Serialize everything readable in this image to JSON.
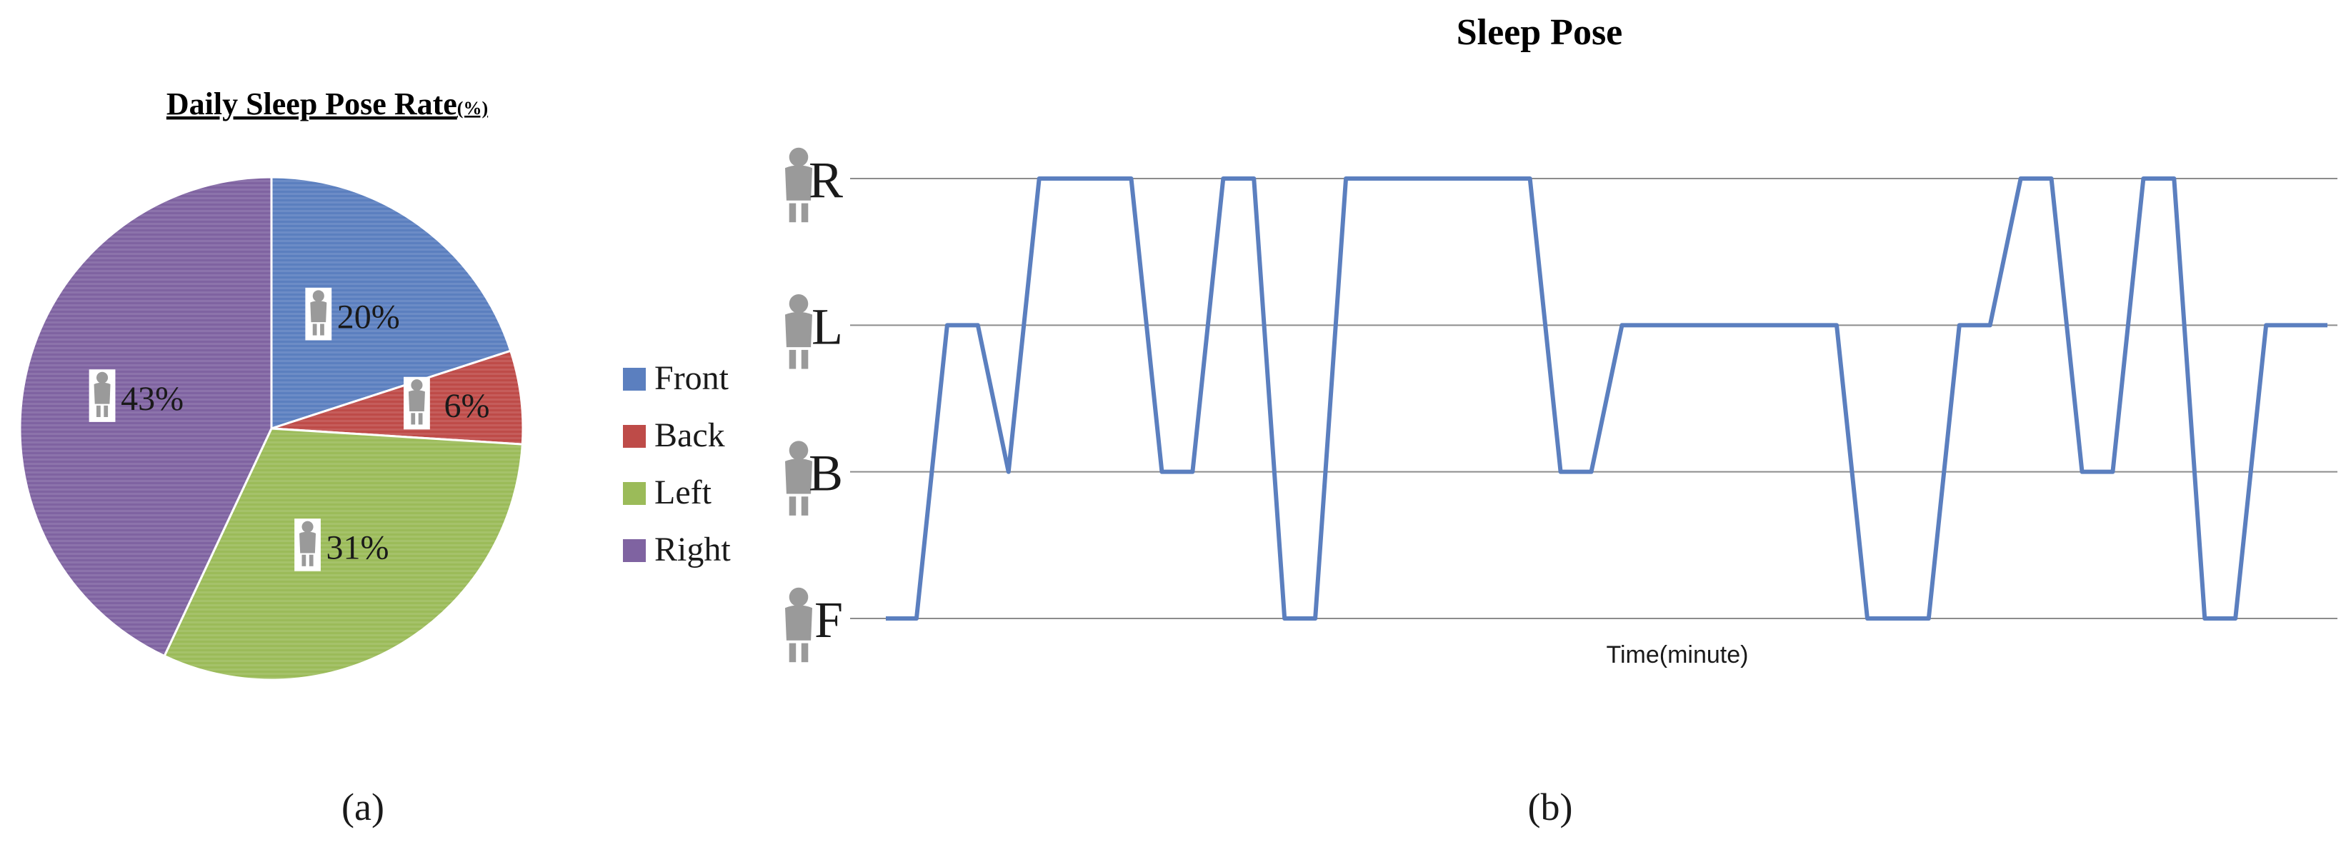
{
  "chart_data": [
    {
      "type": "pie",
      "title": "Daily Sleep Pose Rate",
      "title_unit": "(%)",
      "slices": [
        {
          "name": "Front",
          "value": 20,
          "label": "20%",
          "color": "#5b7fbf"
        },
        {
          "name": "Back",
          "value": 6,
          "label": "6%",
          "color": "#be4b48"
        },
        {
          "name": "Left",
          "value": 31,
          "label": "31%",
          "color": "#9bbb59"
        },
        {
          "name": "Right",
          "value": 43,
          "label": "43%",
          "color": "#7f63a1"
        }
      ],
      "legend_position": "right",
      "caption": "(a)"
    },
    {
      "type": "line",
      "title": "Sleep Pose",
      "xlabel": "Time(minute)",
      "ylabel": "",
      "y_categories": [
        "F",
        "B",
        "L",
        "R"
      ],
      "grid": true,
      "line_color": "#5b7fbf",
      "series": [
        {
          "values": [
            [
              0.0,
              "F"
            ],
            [
              1.0,
              "F"
            ],
            [
              2.0,
              "L"
            ],
            [
              3.0,
              "L"
            ],
            [
              4.0,
              "B"
            ],
            [
              5.0,
              "R"
            ],
            [
              8.0,
              "R"
            ],
            [
              9.0,
              "B"
            ],
            [
              10.0,
              "B"
            ],
            [
              11.0,
              "R"
            ],
            [
              12.0,
              "R"
            ],
            [
              13.0,
              "F"
            ],
            [
              14.0,
              "F"
            ],
            [
              15.0,
              "R"
            ],
            [
              21.0,
              "R"
            ],
            [
              22.0,
              "B"
            ],
            [
              23.0,
              "B"
            ],
            [
              24.0,
              "L"
            ],
            [
              31.0,
              "L"
            ],
            [
              32.0,
              "F"
            ],
            [
              34.0,
              "F"
            ],
            [
              35.0,
              "L"
            ],
            [
              36.0,
              "L"
            ],
            [
              37.0,
              "R"
            ],
            [
              38.0,
              "R"
            ],
            [
              39.0,
              "B"
            ],
            [
              40.0,
              "B"
            ],
            [
              41.0,
              "R"
            ],
            [
              42.0,
              "R"
            ],
            [
              43.0,
              "F"
            ],
            [
              44.0,
              "F"
            ],
            [
              45.0,
              "L"
            ],
            [
              47.0,
              "L"
            ]
          ]
        }
      ],
      "xlim": [
        0,
        47
      ],
      "caption": "(b)"
    }
  ]
}
